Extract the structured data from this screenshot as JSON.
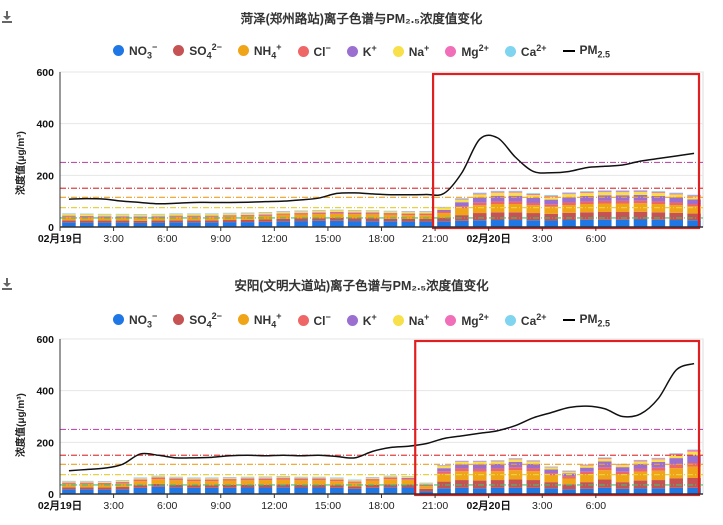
{
  "legend": [
    {
      "base": "NO",
      "sub": "3",
      "sup": "−",
      "color": "#1f77e6"
    },
    {
      "base": "SO",
      "sub": "4",
      "sup": "2−",
      "color": "#c65353"
    },
    {
      "base": "NH",
      "sub": "4",
      "sup": "+",
      "color": "#f0a418"
    },
    {
      "base": "Cl",
      "sub": "",
      "sup": "−",
      "color": "#ee6666"
    },
    {
      "base": "K",
      "sub": "",
      "sup": "+",
      "color": "#9b6fd0"
    },
    {
      "base": "Na",
      "sub": "",
      "sup": "+",
      "color": "#f7e04a"
    },
    {
      "base": "Mg",
      "sub": "",
      "sup": "2+",
      "color": "#f06fb8"
    },
    {
      "base": "Ca",
      "sub": "",
      "sup": "2+",
      "color": "#7fd4ef"
    },
    {
      "base": "PM",
      "sub": "2.5",
      "sup": "",
      "color": "#000000",
      "line": true
    }
  ],
  "charts": [
    {
      "title": "菏泽(郑州路站)离子色谱与PM₂.₅浓度值变化",
      "ylabel": "浓度值(μg/m³)",
      "chart_data": {
        "type": "bar",
        "ylim": [
          0,
          600
        ],
        "yticks": [
          "0",
          "200",
          "400",
          "600"
        ],
        "xticks": [
          {
            "i": 0,
            "label": "02月19日",
            "bold": true
          },
          {
            "i": 3,
            "label": "3:00"
          },
          {
            "i": 6,
            "label": "6:00"
          },
          {
            "i": 9,
            "label": "9:00"
          },
          {
            "i": 12,
            "label": "12:00"
          },
          {
            "i": 15,
            "label": "15:00"
          },
          {
            "i": 18,
            "label": "18:00"
          },
          {
            "i": 21,
            "label": "21:00"
          },
          {
            "i": 24,
            "label": "02月20日",
            "bold": true
          },
          {
            "i": 27,
            "label": "3:00"
          },
          {
            "i": 30,
            "label": "6:00"
          }
        ],
        "ref_lines": [
          {
            "value": 250,
            "color": "#c050b0"
          },
          {
            "value": 150,
            "color": "#e04040"
          },
          {
            "value": 115,
            "color": "#f0a020"
          },
          {
            "value": 75,
            "color": "#e8d040"
          },
          {
            "value": 35,
            "color": "#40c070"
          }
        ],
        "highlight_from_index": 21,
        "highlight_color": "#e02020",
        "series": [
          {
            "name": "NO3-",
            "values": [
              18,
              17,
              17,
              17,
              16,
              17,
              18,
              18,
              18,
              19,
              19,
              20,
              22,
              23,
              24,
              24,
              23,
              22,
              22,
              21,
              21,
              22,
              24,
              26,
              27,
              27,
              26,
              25,
              27,
              28,
              28,
              28,
              29,
              28,
              27,
              26
            ]
          },
          {
            "name": "SO4 2-",
            "values": [
              8,
              8,
              8,
              8,
              8,
              8,
              8,
              8,
              8,
              8,
              9,
              9,
              10,
              10,
              10,
              11,
              11,
              11,
              10,
              10,
              10,
              14,
              22,
              28,
              30,
              30,
              28,
              26,
              28,
              29,
              30,
              30,
              30,
              29,
              28,
              26
            ]
          },
          {
            "name": "NH4+",
            "values": [
              12,
              12,
              11,
              11,
              11,
              11,
              12,
              12,
              12,
              13,
              13,
              14,
              15,
              15,
              16,
              16,
              16,
              16,
              15,
              15,
              15,
              18,
              26,
              30,
              32,
              32,
              30,
              28,
              30,
              32,
              33,
              33,
              33,
              32,
              30,
              28
            ]
          },
          {
            "name": "Cl-",
            "values": [
              4,
              4,
              4,
              4,
              4,
              4,
              4,
              4,
              4,
              4,
              4,
              4,
              4,
              5,
              5,
              5,
              5,
              5,
              5,
              5,
              5,
              6,
              8,
              10,
              10,
              10,
              9,
              9,
              10,
              10,
              10,
              10,
              10,
              10,
              10,
              9
            ]
          },
          {
            "name": "K+",
            "values": [
              2,
              2,
              2,
              2,
              2,
              2,
              2,
              2,
              2,
              2,
              2,
              2,
              2,
              2,
              2,
              2,
              2,
              2,
              2,
              2,
              2,
              6,
              16,
              20,
              22,
              22,
              20,
              18,
              20,
              21,
              22,
              22,
              22,
              21,
              20,
              18
            ]
          },
          {
            "name": "Na+",
            "values": [
              6,
              6,
              6,
              6,
              6,
              6,
              6,
              6,
              6,
              6,
              6,
              6,
              6,
              6,
              6,
              6,
              6,
              6,
              6,
              6,
              6,
              8,
              10,
              12,
              12,
              12,
              11,
              11,
              12,
              12,
              12,
              12,
              12,
              12,
              11,
              11
            ]
          },
          {
            "name": "Mg2+",
            "values": [
              1,
              1,
              1,
              1,
              1,
              1,
              1,
              1,
              1,
              1,
              1,
              1,
              1,
              1,
              1,
              1,
              1,
              1,
              1,
              1,
              1,
              2,
              3,
              4,
              4,
              4,
              4,
              4,
              4,
              4,
              4,
              4,
              4,
              4,
              4,
              4
            ]
          },
          {
            "name": "Ca2+",
            "values": [
              2,
              2,
              2,
              2,
              2,
              2,
              2,
              2,
              2,
              2,
              2,
              2,
              2,
              2,
              2,
              2,
              2,
              2,
              2,
              2,
              2,
              2,
              3,
              3,
              3,
              3,
              3,
              3,
              3,
              3,
              3,
              3,
              3,
              3,
              3,
              3
            ]
          }
        ],
        "pm25": [
          108,
          110,
          108,
          100,
          95,
          90,
          92,
          95,
          95,
          95,
          96,
          98,
          100,
          105,
          112,
          130,
          132,
          128,
          125,
          125,
          126,
          130,
          210,
          340,
          345,
          270,
          215,
          210,
          215,
          230,
          235,
          240,
          255,
          265,
          275,
          285
        ]
      }
    },
    {
      "title": "安阳(文明大道站)离子色谱与PM₂.₅浓度值变化",
      "ylabel": "浓度值(μg/m³)",
      "chart_data": {
        "type": "bar",
        "ylim": [
          0,
          600
        ],
        "yticks": [
          "0",
          "200",
          "400",
          "600"
        ],
        "xticks": [
          {
            "i": 0,
            "label": "02月19日",
            "bold": true
          },
          {
            "i": 3,
            "label": "3:00"
          },
          {
            "i": 6,
            "label": "6:00"
          },
          {
            "i": 9,
            "label": "9:00"
          },
          {
            "i": 12,
            "label": "12:00"
          },
          {
            "i": 15,
            "label": "15:00"
          },
          {
            "i": 18,
            "label": "18:00"
          },
          {
            "i": 21,
            "label": "21:00"
          },
          {
            "i": 24,
            "label": "02月20日",
            "bold": true
          },
          {
            "i": 27,
            "label": "3:00"
          },
          {
            "i": 30,
            "label": "6:00"
          }
        ],
        "ref_lines": [
          {
            "value": 250,
            "color": "#c050b0"
          },
          {
            "value": 150,
            "color": "#e04040"
          },
          {
            "value": 115,
            "color": "#f0a020"
          },
          {
            "value": 75,
            "color": "#e8d040"
          },
          {
            "value": 35,
            "color": "#40c070"
          }
        ],
        "highlight_from_index": 20,
        "highlight_color": "#e02020",
        "series": [
          {
            "name": "NO3-",
            "values": [
              18,
              18,
              17,
              18,
              24,
              28,
              26,
              24,
              24,
              24,
              25,
              25,
              26,
              25,
              25,
              24,
              20,
              24,
              26,
              25,
              10,
              22,
              24,
              22,
              24,
              24,
              24,
              22,
              18,
              20,
              24,
              20,
              22,
              22,
              24,
              24
            ]
          },
          {
            "name": "SO4 2-",
            "values": [
              8,
              8,
              8,
              9,
              10,
              11,
              10,
              10,
              10,
              11,
              11,
              11,
              12,
              11,
              11,
              10,
              9,
              11,
              12,
              12,
              10,
              26,
              30,
              30,
              30,
              32,
              30,
              24,
              20,
              26,
              32,
              26,
              30,
              32,
              36,
              38
            ]
          },
          {
            "name": "NH4+",
            "values": [
              12,
              12,
              12,
              14,
              16,
              18,
              17,
              16,
              16,
              17,
              17,
              18,
              18,
              17,
              17,
              16,
              14,
              17,
              19,
              18,
              10,
              30,
              34,
              34,
              34,
              36,
              34,
              26,
              22,
              30,
              36,
              30,
              34,
              36,
              40,
              44
            ]
          },
          {
            "name": "Cl-",
            "values": [
              4,
              4,
              4,
              4,
              5,
              5,
              5,
              5,
              5,
              5,
              5,
              5,
              5,
              5,
              5,
              5,
              4,
              5,
              5,
              5,
              5,
              10,
              11,
              11,
              11,
              12,
              11,
              9,
              8,
              10,
              12,
              10,
              11,
              12,
              13,
              14
            ]
          },
          {
            "name": "K+",
            "values": [
              2,
              2,
              2,
              2,
              2,
              2,
              2,
              2,
              2,
              2,
              2,
              2,
              2,
              2,
              2,
              2,
              2,
              2,
              2,
              2,
              2,
              12,
              16,
              18,
              18,
              20,
              18,
              14,
              12,
              16,
              22,
              18,
              20,
              22,
              26,
              30
            ]
          },
          {
            "name": "Na+",
            "values": [
              4,
              4,
              4,
              4,
              4,
              4,
              4,
              4,
              4,
              4,
              4,
              4,
              4,
              4,
              4,
              4,
              4,
              4,
              4,
              4,
              4,
              8,
              9,
              9,
              9,
              10,
              9,
              8,
              7,
              8,
              10,
              8,
              9,
              10,
              12,
              14
            ]
          },
          {
            "name": "Mg2+",
            "values": [
              1,
              1,
              1,
              1,
              1,
              1,
              1,
              1,
              1,
              1,
              1,
              1,
              1,
              1,
              1,
              1,
              1,
              1,
              1,
              1,
              1,
              2,
              3,
              3,
              3,
              3,
              3,
              2,
              2,
              3,
              4,
              3,
              4,
              4,
              5,
              6
            ]
          },
          {
            "name": "Ca2+",
            "values": [
              2,
              2,
              2,
              2,
              2,
              2,
              2,
              2,
              2,
              2,
              2,
              2,
              2,
              2,
              2,
              2,
              2,
              2,
              2,
              2,
              2,
              2,
              2,
              2,
              2,
              2,
              2,
              2,
              2,
              2,
              2,
              2,
              2,
              2,
              2,
              2
            ]
          }
        ],
        "pm25": [
          90,
          95,
          100,
          115,
          155,
          150,
          140,
          140,
          142,
          148,
          150,
          148,
          150,
          148,
          150,
          145,
          140,
          165,
          180,
          185,
          195,
          215,
          225,
          235,
          245,
          265,
          295,
          315,
          335,
          340,
          330,
          300,
          310,
          370,
          480,
          505
        ]
      }
    }
  ]
}
